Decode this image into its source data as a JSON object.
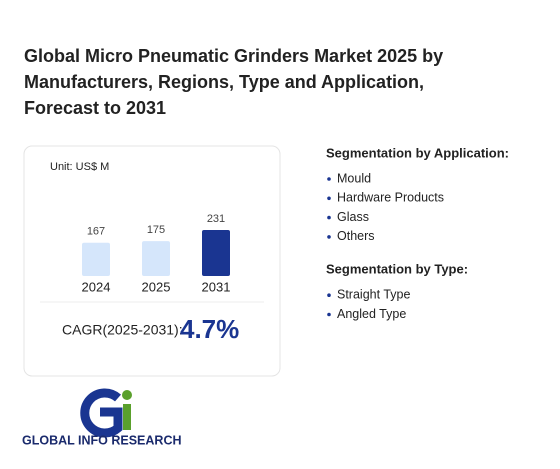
{
  "title": "Global Micro Pneumatic Grinders Market 2025 by Manufacturers, Regions, Type and Application, Forecast to 2031",
  "chart_data": {
    "type": "bar",
    "unit": "Unit: US$ M",
    "categories": [
      "2024",
      "2025",
      "2031"
    ],
    "values": [
      167,
      175,
      231
    ],
    "colors": [
      "#d5e6fb",
      "#d5e6fb",
      "#1a3591"
    ]
  },
  "cagr": {
    "label": "CAGR(2025-2031):",
    "value": "4.7%"
  },
  "segments": [
    {
      "heading": "Segmentation by Application:",
      "items": [
        "Mould",
        "Hardware Products",
        "Glass",
        "Others"
      ]
    },
    {
      "heading": "Segmentation by Type:",
      "items": [
        "Straight Type",
        "Angled Type"
      ]
    }
  ],
  "logo": "GLOBAL INFO RESEARCH"
}
